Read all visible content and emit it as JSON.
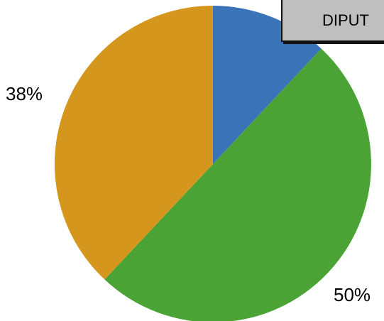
{
  "chart_data": {
    "type": "pie",
    "slices": [
      {
        "label": "",
        "value": 12,
        "color": "#3b73b9",
        "shown_label": ""
      },
      {
        "label": "",
        "value": 50,
        "color": "#4aa334",
        "shown_label": "50%"
      },
      {
        "label": "",
        "value": 38,
        "color": "#d4961c",
        "shown_label": "38%"
      }
    ],
    "start_angle_deg": 0,
    "direction": "clockwise",
    "legend_text": "DIPUT",
    "legend_position": "top-right"
  }
}
